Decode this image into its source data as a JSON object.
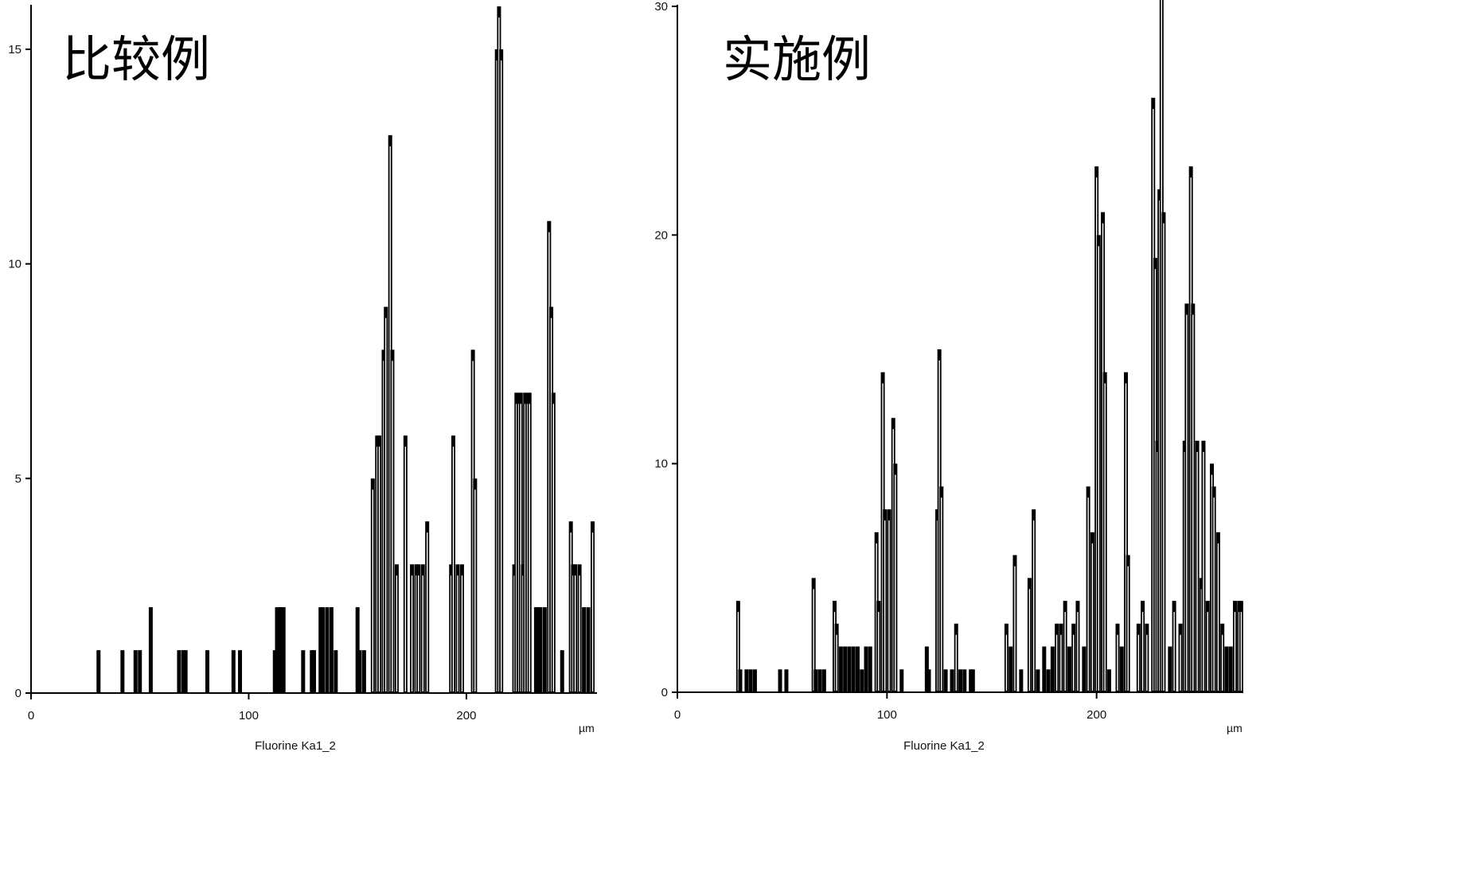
{
  "chart_data": [
    {
      "type": "line",
      "title": "比较例",
      "xlabel": "Fluorine Ka1_2",
      "x_unit": "µm",
      "xlim": [
        0,
        260
      ],
      "ylim": [
        0,
        16
      ],
      "x_ticks": [
        0,
        100,
        200
      ],
      "y_ticks": [
        0,
        5,
        10,
        15
      ],
      "grid": false,
      "series": [
        {
          "peaks": [
            [
              31,
              1
            ],
            [
              42,
              1
            ],
            [
              48,
              1
            ],
            [
              50,
              1
            ],
            [
              55,
              2
            ],
            [
              68,
              1
            ],
            [
              70,
              1
            ],
            [
              71,
              1
            ],
            [
              81,
              1
            ],
            [
              93,
              1
            ],
            [
              96,
              1
            ],
            [
              112,
              1
            ],
            [
              113,
              2
            ],
            [
              114,
              2
            ],
            [
              115,
              2
            ],
            [
              116,
              2
            ],
            [
              125,
              1
            ],
            [
              129,
              1
            ],
            [
              130,
              1
            ],
            [
              133,
              2
            ],
            [
              134,
              2
            ],
            [
              136,
              2
            ],
            [
              138,
              2
            ],
            [
              140,
              1
            ],
            [
              150,
              2
            ],
            [
              151,
              1
            ],
            [
              153,
              1
            ],
            [
              157,
              5
            ],
            [
              159,
              6
            ],
            [
              160,
              6
            ],
            [
              162,
              8
            ],
            [
              163,
              9
            ],
            [
              165,
              13
            ],
            [
              166,
              8
            ],
            [
              168,
              3
            ],
            [
              170,
              0
            ],
            [
              172,
              6
            ],
            [
              175,
              3
            ],
            [
              177,
              3
            ],
            [
              178,
              3
            ],
            [
              180,
              3
            ],
            [
              182,
              4
            ],
            [
              193,
              3
            ],
            [
              194,
              6
            ],
            [
              196,
              3
            ],
            [
              198,
              3
            ],
            [
              203,
              8
            ],
            [
              204,
              5
            ],
            [
              214,
              15
            ],
            [
              215,
              16
            ],
            [
              216,
              15
            ],
            [
              222,
              3
            ],
            [
              223,
              7
            ],
            [
              224,
              7
            ],
            [
              225,
              7
            ],
            [
              226,
              3
            ],
            [
              227,
              7
            ],
            [
              228,
              7
            ],
            [
              229,
              7
            ],
            [
              232,
              2
            ],
            [
              233,
              2
            ],
            [
              234,
              2
            ],
            [
              236,
              2
            ],
            [
              238,
              11
            ],
            [
              239,
              9
            ],
            [
              240,
              7
            ],
            [
              244,
              1
            ],
            [
              248,
              4
            ],
            [
              249,
              3
            ],
            [
              250,
              3
            ],
            [
              252,
              3
            ],
            [
              254,
              2
            ],
            [
              256,
              2
            ],
            [
              258,
              4
            ]
          ]
        }
      ]
    },
    {
      "type": "line",
      "title": "实施例",
      "xlabel": "Fluorine Ka1_2",
      "x_unit": "µm",
      "xlim": [
        0,
        270
      ],
      "ylim": [
        0,
        30
      ],
      "x_ticks": [
        0,
        100,
        200
      ],
      "y_ticks": [
        0,
        10,
        20,
        30
      ],
      "grid": false,
      "series": [
        {
          "peaks": [
            [
              29,
              4
            ],
            [
              30,
              1
            ],
            [
              33,
              1
            ],
            [
              35,
              1
            ],
            [
              37,
              1
            ],
            [
              49,
              1
            ],
            [
              52,
              1
            ],
            [
              65,
              5
            ],
            [
              66,
              1
            ],
            [
              68,
              1
            ],
            [
              70,
              1
            ],
            [
              75,
              4
            ],
            [
              76,
              3
            ],
            [
              78,
              2
            ],
            [
              80,
              2
            ],
            [
              82,
              2
            ],
            [
              84,
              2
            ],
            [
              86,
              2
            ],
            [
              88,
              1
            ],
            [
              90,
              2
            ],
            [
              92,
              2
            ],
            [
              95,
              7
            ],
            [
              96,
              4
            ],
            [
              98,
              14
            ],
            [
              99,
              8
            ],
            [
              101,
              8
            ],
            [
              103,
              12
            ],
            [
              104,
              10
            ],
            [
              107,
              1
            ],
            [
              119,
              2
            ],
            [
              120,
              1
            ],
            [
              124,
              8
            ],
            [
              125,
              15
            ],
            [
              126,
              9
            ],
            [
              128,
              1
            ],
            [
              131,
              1
            ],
            [
              133,
              3
            ],
            [
              135,
              1
            ],
            [
              137,
              1
            ],
            [
              140,
              1
            ],
            [
              141,
              1
            ],
            [
              157,
              3
            ],
            [
              159,
              2
            ],
            [
              161,
              6
            ],
            [
              164,
              1
            ],
            [
              168,
              5
            ],
            [
              170,
              8
            ],
            [
              172,
              1
            ],
            [
              175,
              2
            ],
            [
              177,
              1
            ],
            [
              179,
              2
            ],
            [
              181,
              3
            ],
            [
              183,
              3
            ],
            [
              185,
              4
            ],
            [
              187,
              2
            ],
            [
              189,
              3
            ],
            [
              191,
              4
            ],
            [
              194,
              2
            ],
            [
              196,
              9
            ],
            [
              198,
              7
            ],
            [
              200,
              23
            ],
            [
              201,
              20
            ],
            [
              203,
              21
            ],
            [
              204,
              14
            ],
            [
              206,
              1
            ],
            [
              210,
              3
            ],
            [
              212,
              2
            ],
            [
              214,
              14
            ],
            [
              215,
              6
            ],
            [
              220,
              3
            ],
            [
              222,
              4
            ],
            [
              224,
              3
            ],
            [
              227,
              26
            ],
            [
              228,
              19
            ],
            [
              229,
              11
            ],
            [
              230,
              22
            ],
            [
              231,
              31
            ],
            [
              232,
              21
            ],
            [
              235,
              2
            ],
            [
              237,
              4
            ],
            [
              240,
              3
            ],
            [
              242,
              11
            ],
            [
              243,
              17
            ],
            [
              245,
              23
            ],
            [
              246,
              17
            ],
            [
              248,
              11
            ],
            [
              250,
              5
            ],
            [
              251,
              11
            ],
            [
              253,
              4
            ],
            [
              255,
              10
            ],
            [
              256,
              9
            ],
            [
              258,
              7
            ],
            [
              260,
              3
            ],
            [
              262,
              2
            ],
            [
              264,
              2
            ],
            [
              266,
              4
            ],
            [
              268,
              4
            ],
            [
              269,
              4
            ]
          ]
        }
      ]
    }
  ]
}
